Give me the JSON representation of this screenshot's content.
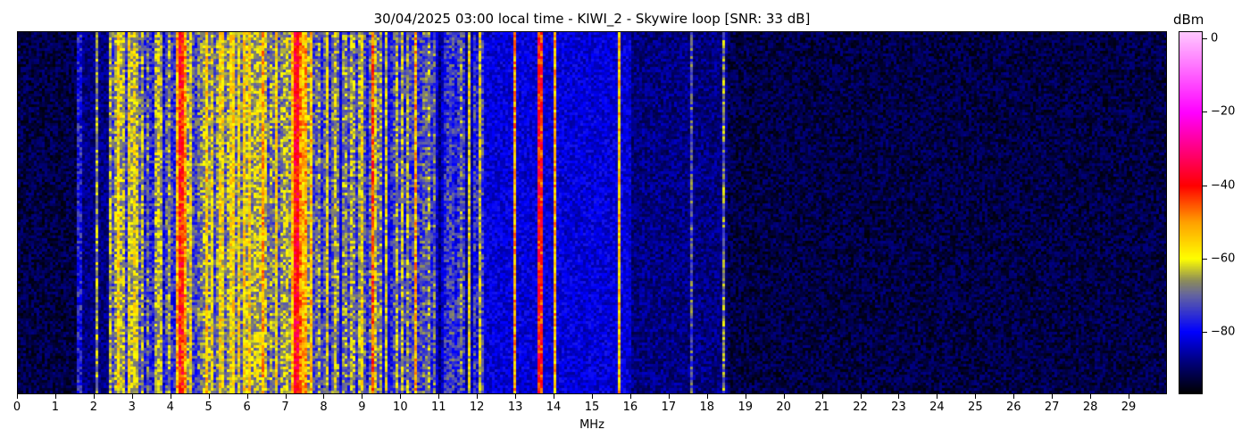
{
  "chart_data": {
    "type": "heatmap",
    "title": "30/04/2025 03:00 local time - KIWI_2 - Skywire loop [SNR: 33 dB]",
    "xlabel": "MHz",
    "xlim": [
      0,
      30
    ],
    "x_ticks": [
      0,
      1,
      2,
      3,
      4,
      5,
      6,
      7,
      8,
      9,
      10,
      11,
      12,
      13,
      14,
      15,
      16,
      17,
      18,
      19,
      20,
      21,
      22,
      23,
      24,
      25,
      26,
      27,
      28,
      29
    ],
    "colorbar": {
      "label": "dBm",
      "range": [
        -97,
        2
      ],
      "ticks": [
        0,
        -20,
        -40,
        -60,
        -80
      ],
      "colormap": [
        [
          -97,
          "#000000"
        ],
        [
          -88,
          "#000080"
        ],
        [
          -80,
          "#0000ff"
        ],
        [
          -70,
          "#6464a0"
        ],
        [
          -66,
          "#8c8c5a"
        ],
        [
          -60,
          "#ffff00"
        ],
        [
          -50,
          "#ffa000"
        ],
        [
          -40,
          "#ff0000"
        ],
        [
          -30,
          "#ff0080"
        ],
        [
          -20,
          "#ff00ff"
        ],
        [
          2,
          "#ffc8ff"
        ]
      ]
    },
    "band_levels_dBm": [
      [
        0,
        1.5,
        -92
      ],
      [
        1.5,
        2.4,
        -88
      ],
      [
        2.4,
        3.2,
        -68
      ],
      [
        3.2,
        4.1,
        -71
      ],
      [
        4.1,
        4.4,
        -49
      ],
      [
        4.4,
        5.6,
        -66
      ],
      [
        5.6,
        7.2,
        -61
      ],
      [
        7.2,
        7.35,
        -38
      ],
      [
        7.35,
        7.7,
        -56
      ],
      [
        7.7,
        10.5,
        -71
      ],
      [
        10.5,
        12.2,
        -78
      ],
      [
        12.2,
        16,
        -82
      ],
      [
        16,
        18.5,
        -88
      ],
      [
        18.5,
        30,
        -92
      ]
    ],
    "carriers_dBm": [
      [
        1.6,
        -78
      ],
      [
        2.05,
        -65
      ],
      [
        9.25,
        -45
      ],
      [
        10.4,
        -52
      ],
      [
        11.8,
        -60
      ],
      [
        12.05,
        -62
      ],
      [
        13.0,
        -50
      ],
      [
        13.6,
        -40
      ],
      [
        13.7,
        -42
      ],
      [
        14.0,
        -52
      ],
      [
        15.7,
        -55
      ],
      [
        17.6,
        -72
      ],
      [
        18.45,
        -68
      ]
    ]
  }
}
